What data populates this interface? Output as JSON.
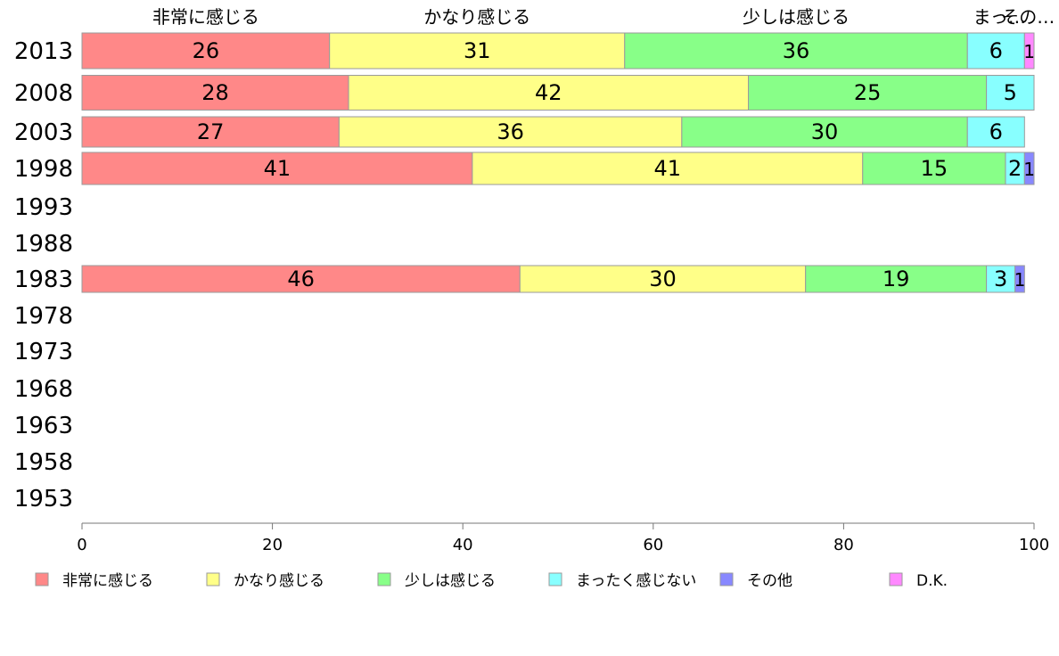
{
  "chart_data": {
    "type": "bar",
    "orientation": "horizontal",
    "stacked": true,
    "categories": [
      "2013",
      "2008",
      "2003",
      "1998",
      "1993",
      "1988",
      "1983",
      "1978",
      "1973",
      "1968",
      "1963",
      "1958",
      "1953"
    ],
    "series": [
      {
        "name": "非常に感じる",
        "color": "#ff8888",
        "values": [
          26,
          28,
          27,
          41,
          null,
          null,
          46,
          null,
          null,
          null,
          null,
          null,
          null
        ]
      },
      {
        "name": "かなり感じる",
        "color": "#ffff88",
        "values": [
          31,
          42,
          36,
          41,
          null,
          null,
          30,
          null,
          null,
          null,
          null,
          null,
          null
        ]
      },
      {
        "name": "少しは感じる",
        "color": "#88ff88",
        "values": [
          36,
          25,
          30,
          15,
          null,
          null,
          19,
          null,
          null,
          null,
          null,
          null,
          null
        ]
      },
      {
        "name": "まったく感じない",
        "color": "#88ffff",
        "values": [
          6,
          5,
          6,
          2,
          null,
          null,
          3,
          null,
          null,
          null,
          null,
          null,
          null
        ]
      },
      {
        "name": "その他",
        "color": "#8888ff",
        "values": [
          0,
          0,
          0,
          1,
          null,
          null,
          1,
          null,
          null,
          null,
          null,
          null,
          null
        ]
      },
      {
        "name": "D.K.",
        "color": "#ff88ff",
        "values": [
          1,
          0,
          0,
          0,
          null,
          null,
          0,
          null,
          null,
          null,
          null,
          null,
          null
        ]
      }
    ],
    "top_labels": [
      "非常に感じる",
      "かなり感じる",
      "少しは感じる",
      "まっ…",
      "その…"
    ],
    "xlim": [
      0,
      100
    ],
    "xticks": [
      0,
      20,
      40,
      60,
      80,
      100
    ],
    "grid": false,
    "legend_position": "bottom"
  }
}
